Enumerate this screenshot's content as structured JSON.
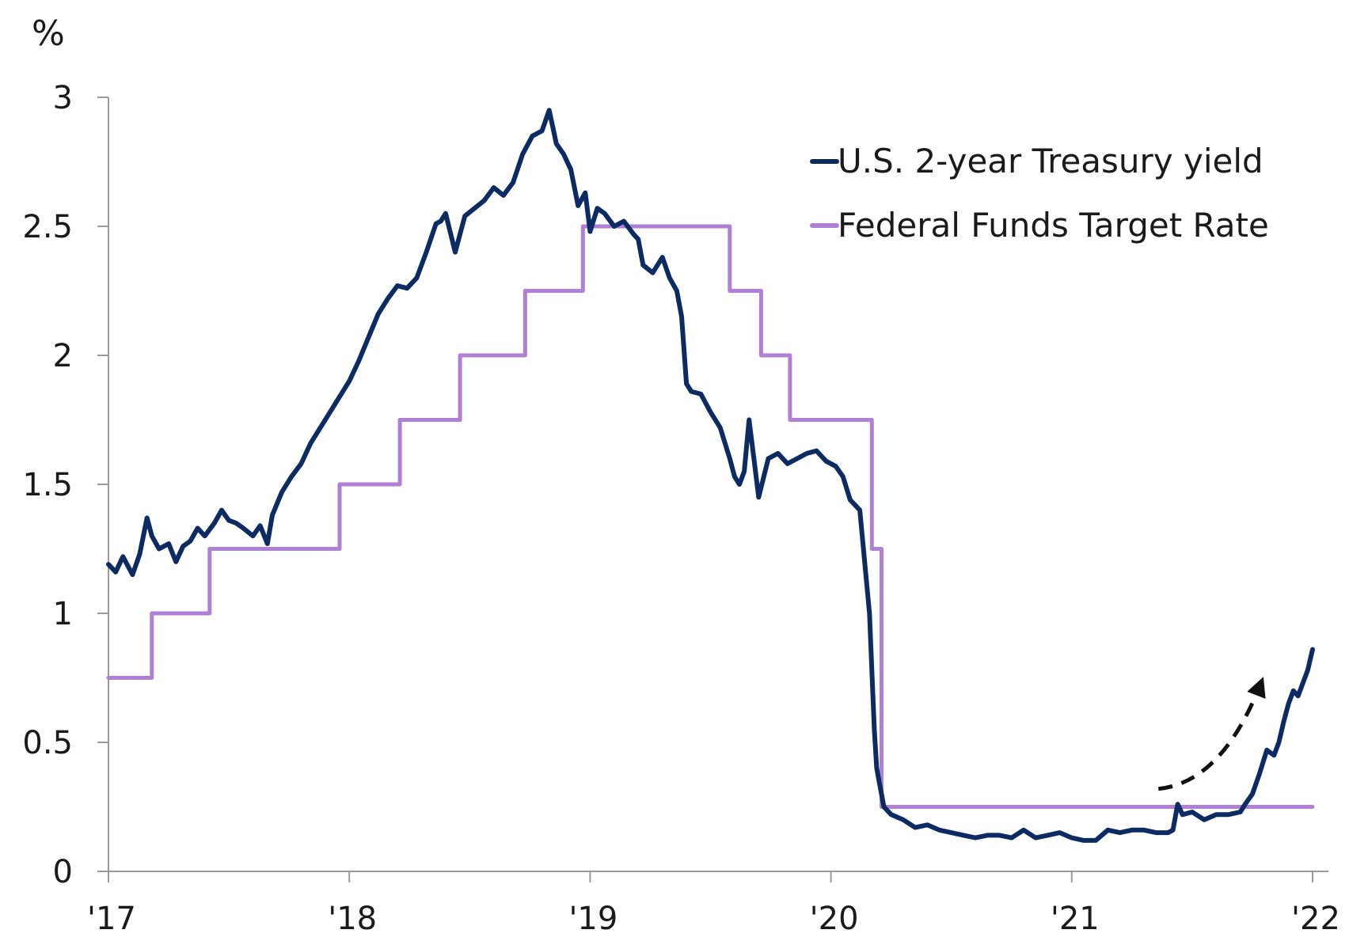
{
  "chart_data": {
    "type": "line",
    "title": "",
    "y_unit_label": "%",
    "xlabel": "",
    "ylabel": "",
    "xlim": [
      2017.0,
      2022.0
    ],
    "ylim": [
      0,
      3
    ],
    "grid": false,
    "legend_placement": "top-right",
    "x_ticks": [
      {
        "value": 2017,
        "label": "'17"
      },
      {
        "value": 2018,
        "label": "'18"
      },
      {
        "value": 2019,
        "label": "'19"
      },
      {
        "value": 2020,
        "label": "'20"
      },
      {
        "value": 2021,
        "label": "'21"
      },
      {
        "value": 2022,
        "label": "'22"
      }
    ],
    "y_ticks": [
      {
        "value": 0,
        "label": "0"
      },
      {
        "value": 0.5,
        "label": "0.5"
      },
      {
        "value": 1,
        "label": "1"
      },
      {
        "value": 1.5,
        "label": "1.5"
      },
      {
        "value": 2,
        "label": "2"
      },
      {
        "value": 2.5,
        "label": "2.5"
      },
      {
        "value": 3,
        "label": "3"
      }
    ],
    "series": [
      {
        "name": "U.S. 2-year Treasury yield",
        "color": "#0d2b63",
        "style": "line",
        "x": [
          2017.0,
          2017.03,
          2017.06,
          2017.1,
          2017.13,
          2017.16,
          2017.18,
          2017.21,
          2017.25,
          2017.28,
          2017.31,
          2017.34,
          2017.37,
          2017.4,
          2017.44,
          2017.47,
          2017.5,
          2017.53,
          2017.56,
          2017.6,
          2017.63,
          2017.66,
          2017.68,
          2017.72,
          2017.76,
          2017.8,
          2017.84,
          2017.88,
          2017.92,
          2017.96,
          2018.0,
          2018.04,
          2018.08,
          2018.12,
          2018.16,
          2018.2,
          2018.24,
          2018.28,
          2018.32,
          2018.36,
          2018.38,
          2018.4,
          2018.44,
          2018.48,
          2018.52,
          2018.56,
          2018.6,
          2018.64,
          2018.68,
          2018.72,
          2018.76,
          2018.8,
          2018.83,
          2018.86,
          2018.89,
          2018.92,
          2018.95,
          2018.98,
          2019.0,
          2019.03,
          2019.06,
          2019.1,
          2019.14,
          2019.18,
          2019.2,
          2019.22,
          2019.26,
          2019.3,
          2019.33,
          2019.36,
          2019.38,
          2019.4,
          2019.42,
          2019.46,
          2019.5,
          2019.54,
          2019.58,
          2019.6,
          2019.62,
          2019.64,
          2019.66,
          2019.68,
          2019.7,
          2019.74,
          2019.78,
          2019.82,
          2019.86,
          2019.9,
          2019.94,
          2019.98,
          2020.02,
          2020.05,
          2020.08,
          2020.12,
          2020.14,
          2020.16,
          2020.18,
          2020.19,
          2020.2,
          2020.22,
          2020.25,
          2020.3,
          2020.35,
          2020.4,
          2020.45,
          2020.5,
          2020.55,
          2020.6,
          2020.65,
          2020.7,
          2020.75,
          2020.8,
          2020.85,
          2020.9,
          2020.95,
          2021.0,
          2021.05,
          2021.1,
          2021.15,
          2021.2,
          2021.25,
          2021.3,
          2021.35,
          2021.4,
          2021.42,
          2021.44,
          2021.46,
          2021.5,
          2021.55,
          2021.6,
          2021.65,
          2021.7,
          2021.72,
          2021.75,
          2021.78,
          2021.81,
          2021.84,
          2021.86,
          2021.88,
          2021.9,
          2021.92,
          2021.94,
          2021.96,
          2021.98,
          2022.0
        ],
        "y": [
          1.19,
          1.16,
          1.22,
          1.15,
          1.23,
          1.37,
          1.3,
          1.25,
          1.27,
          1.2,
          1.26,
          1.28,
          1.33,
          1.3,
          1.35,
          1.4,
          1.36,
          1.35,
          1.33,
          1.3,
          1.34,
          1.27,
          1.38,
          1.47,
          1.53,
          1.58,
          1.66,
          1.72,
          1.78,
          1.84,
          1.9,
          1.98,
          2.07,
          2.16,
          2.22,
          2.27,
          2.26,
          2.3,
          2.4,
          2.51,
          2.52,
          2.55,
          2.4,
          2.54,
          2.57,
          2.6,
          2.65,
          2.62,
          2.67,
          2.78,
          2.85,
          2.87,
          2.95,
          2.82,
          2.78,
          2.72,
          2.58,
          2.63,
          2.48,
          2.57,
          2.55,
          2.5,
          2.52,
          2.47,
          2.45,
          2.35,
          2.32,
          2.38,
          2.3,
          2.25,
          2.15,
          1.89,
          1.86,
          1.85,
          1.78,
          1.72,
          1.6,
          1.53,
          1.5,
          1.55,
          1.75,
          1.6,
          1.45,
          1.6,
          1.62,
          1.58,
          1.6,
          1.62,
          1.63,
          1.59,
          1.57,
          1.53,
          1.44,
          1.4,
          1.2,
          1.0,
          0.55,
          0.4,
          0.35,
          0.25,
          0.22,
          0.2,
          0.17,
          0.18,
          0.16,
          0.15,
          0.14,
          0.13,
          0.14,
          0.14,
          0.13,
          0.16,
          0.13,
          0.14,
          0.15,
          0.13,
          0.12,
          0.12,
          0.16,
          0.15,
          0.16,
          0.16,
          0.15,
          0.15,
          0.16,
          0.26,
          0.22,
          0.23,
          0.2,
          0.22,
          0.22,
          0.23,
          0.26,
          0.3,
          0.38,
          0.47,
          0.45,
          0.5,
          0.58,
          0.65,
          0.7,
          0.68,
          0.73,
          0.78,
          0.86
        ]
      },
      {
        "name": "Federal Funds Target Rate",
        "color": "#b07fd6",
        "style": "step",
        "x": [
          2017.0,
          2017.18,
          2017.42,
          2017.96,
          2018.21,
          2018.46,
          2018.73,
          2018.97,
          2019.58,
          2019.71,
          2019.83,
          2020.17,
          2020.21,
          2022.0
        ],
        "y": [
          0.75,
          1.0,
          1.25,
          1.5,
          1.75,
          2.0,
          2.25,
          2.5,
          2.25,
          2.0,
          1.75,
          1.25,
          0.25,
          0.25
        ]
      }
    ],
    "annotations": [
      {
        "type": "dashed-arrow",
        "description": "rising trend",
        "from": [
          2021.36,
          0.32
        ],
        "to": [
          2021.79,
          0.74
        ],
        "color": "#111111"
      }
    ]
  }
}
